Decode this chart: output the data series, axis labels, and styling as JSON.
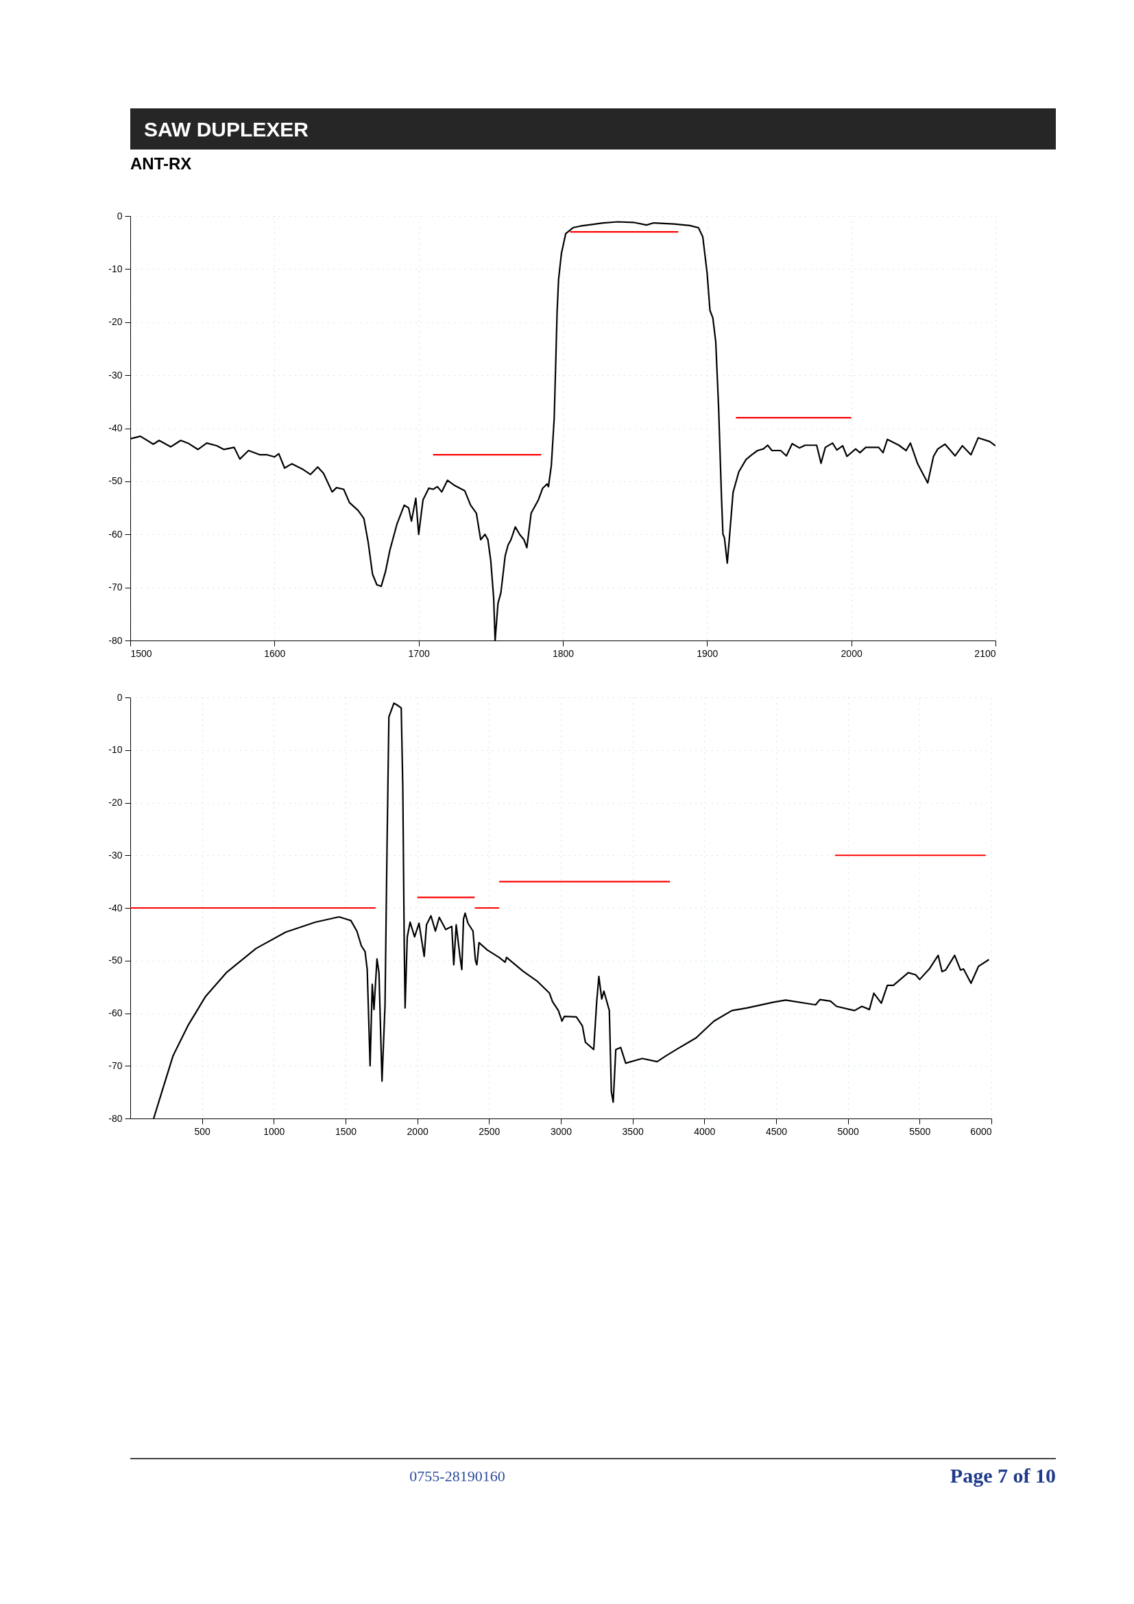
{
  "chart_data": [
    {
      "type": "line",
      "title": "SAW DUPLEXER",
      "subtitle": "ANT-RX",
      "xlim": [
        1500,
        2100
      ],
      "xticks": [
        1500,
        1600,
        1700,
        1800,
        1900,
        2000,
        2100
      ],
      "ylim": [
        -80,
        0
      ],
      "yticks": [
        -80,
        -70,
        -60,
        -50,
        -40,
        -30,
        -20,
        -10,
        0
      ],
      "grid": true,
      "line_style": "solid",
      "series": [
        {
          "color": "#000000",
          "x": [
            1500,
            1507,
            1516,
            1520,
            1528,
            1535,
            1540,
            1547,
            1553,
            1560,
            1565,
            1572,
            1576,
            1582,
            1590,
            1595,
            1600,
            1603,
            1607,
            1612,
            1620,
            1625,
            1630,
            1634,
            1640,
            1643,
            1648,
            1652,
            1658,
            1662,
            1665,
            1668,
            1671,
            1674,
            1677,
            1680,
            1685,
            1690,
            1693,
            1695,
            1698,
            1700,
            1703,
            1707,
            1710,
            1713,
            1716,
            1720,
            1725,
            1732,
            1736,
            1740,
            1743,
            1746,
            1748,
            1750,
            1752,
            1753,
            1755,
            1757,
            1760,
            1762,
            1764,
            1767,
            1770,
            1773,
            1775,
            1778,
            1783,
            1786,
            1789,
            1790,
            1792,
            1794,
            1795,
            1796,
            1797,
            1799,
            1802,
            1807,
            1812,
            1828,
            1838,
            1849,
            1858,
            1863,
            1877,
            1888,
            1894,
            1897,
            1900,
            1902,
            1904,
            1906,
            1908,
            1910,
            1911,
            1912,
            1914,
            1915.5,
            1918,
            1922,
            1927,
            1931,
            1935,
            1939,
            1942,
            1945,
            1951,
            1955,
            1959,
            1964,
            1968,
            1976,
            1979,
            1982,
            1987,
            1990,
            1994,
            1997,
            2003,
            2006,
            2010,
            2019,
            2022,
            2025,
            2033,
            2038,
            2041,
            2046,
            2053,
            2057,
            2060,
            2065,
            2072,
            2077,
            2083,
            2088,
            2096,
            2100
          ],
          "values": [
            -42,
            -41.5,
            -43,
            -42.3,
            -43.5,
            -42.3,
            -42.8,
            -44,
            -42.8,
            -43.3,
            -44,
            -43.6,
            -45.8,
            -44.2,
            -45,
            -45,
            -45.4,
            -44.8,
            -47.5,
            -46.7,
            -47.8,
            -48.7,
            -47.3,
            -48.5,
            -52,
            -51.2,
            -51.5,
            -54,
            -55.5,
            -57,
            -61.5,
            -67.5,
            -69.5,
            -69.8,
            -67,
            -63,
            -58,
            -54.5,
            -55,
            -57.5,
            -53.2,
            -60,
            -53.5,
            -51.3,
            -51.5,
            -51,
            -52,
            -49.8,
            -50.8,
            -51.8,
            -54.5,
            -56,
            -61,
            -60,
            -61,
            -65,
            -72,
            -80,
            -73,
            -71,
            -64,
            -62,
            -61,
            -58.6,
            -60,
            -61,
            -62.5,
            -56,
            -53.5,
            -51.3,
            -50.5,
            -51,
            -47,
            -38,
            -28,
            -18,
            -12,
            -7,
            -3.3,
            -2.2,
            -1.9,
            -1.3,
            -1.1,
            -1.2,
            -1.7,
            -1.3,
            -1.5,
            -1.8,
            -2.2,
            -3.9,
            -10.7,
            -17.8,
            -19.2,
            -23.7,
            -36.2,
            -53.2,
            -60,
            -60.6,
            -65.4,
            -60.6,
            -52.1,
            -48.2,
            -45.9,
            -45,
            -44.2,
            -43.9,
            -43.2,
            -44.2,
            -44.2,
            -45.2,
            -42.9,
            -43.7,
            -43.2,
            -43.2,
            -46.6,
            -43.6,
            -42.8,
            -44.1,
            -43.3,
            -45.3,
            -43.9,
            -44.6,
            -43.6,
            -43.6,
            -44.6,
            -42.1,
            -43.2,
            -44.2,
            -42.8,
            -46.7,
            -50.3,
            -45.3,
            -43.9,
            -43,
            -45.2,
            -43.3,
            -45,
            -41.8,
            -42.5,
            -43.3
          ]
        },
        {
          "color": "#ff0000",
          "x": [
            1710,
            1785,
            null,
            1805,
            1880,
            null,
            1920,
            2000
          ],
          "values": [
            -45,
            -45,
            null,
            -3,
            -3,
            null,
            -38,
            -38
          ]
        }
      ]
    },
    {
      "type": "line",
      "xlim": [
        0,
        6000
      ],
      "xticks": [
        500,
        1000,
        1500,
        2000,
        2500,
        3000,
        3500,
        4000,
        4500,
        5000,
        5500,
        6000
      ],
      "ylim": [
        -80,
        0
      ],
      "yticks": [
        -80,
        -70,
        -60,
        -50,
        -40,
        -30,
        -20,
        -10,
        0
      ],
      "grid": true,
      "line_style": "solid",
      "annotations": [
        "0755-28190160",
        "Page 7 of 10"
      ],
      "series": [
        {
          "color": "#000000",
          "x": [
            163,
            215,
            298,
            401,
            525,
            669,
            876,
            1083,
            1289,
            1455,
            1537,
            1579,
            1610,
            1636,
            1651,
            1671,
            1686,
            1698,
            1719,
            1733,
            1754,
            1775,
            1789,
            1802,
            1837,
            1857,
            1888,
            1899,
            1909,
            1915,
            1930,
            1950,
            1981,
            2012,
            2048,
            2064,
            2095,
            2126,
            2153,
            2198,
            2240,
            2254,
            2271,
            2298,
            2310,
            2322,
            2333,
            2353,
            2388,
            2405,
            2415,
            2430,
            2488,
            2570,
            2612,
            2622,
            2736,
            2839,
            2921,
            2942,
            2983,
            3008,
            3025,
            3108,
            3150,
            3171,
            3229,
            3250,
            3265,
            3285,
            3300,
            3338,
            3352,
            3365,
            3383,
            3417,
            3452,
            3567,
            3671,
            3733,
            3817,
            3942,
            4067,
            4192,
            4296,
            4483,
            4567,
            4775,
            4806,
            4879,
            4921,
            5046,
            5098,
            5150,
            5181,
            5233,
            5275,
            5317,
            5421,
            5473,
            5500,
            5567,
            5629,
            5656,
            5681,
            5744,
            5785,
            5806,
            5858,
            5910,
            5983
          ],
          "values": [
            -80,
            -75.4,
            -68.1,
            -62.4,
            -56.8,
            -52.3,
            -47.7,
            -44.6,
            -42.7,
            -41.7,
            -42.4,
            -44.4,
            -47.2,
            -48.3,
            -51.7,
            -70,
            -54.5,
            -59.3,
            -49.7,
            -52.3,
            -72.9,
            -58.5,
            -28.5,
            -3.7,
            -1.1,
            -1.4,
            -2,
            -17.2,
            -47.2,
            -59,
            -45.5,
            -42.7,
            -45.5,
            -42.9,
            -49.2,
            -43.2,
            -41.5,
            -44.4,
            -41.8,
            -44.1,
            -43.5,
            -50.8,
            -43.2,
            -49.4,
            -51.7,
            -42.1,
            -41,
            -42.9,
            -44.4,
            -50,
            -50.8,
            -46.6,
            -48,
            -49.4,
            -50.3,
            -49.4,
            -52,
            -54,
            -56.2,
            -57.8,
            -59.5,
            -61.5,
            -60.6,
            -60.7,
            -62.4,
            -65.5,
            -66.9,
            -57.8,
            -53,
            -57.3,
            -55.8,
            -59.5,
            -74.9,
            -76.9,
            -66.9,
            -66.5,
            -69.5,
            -68.6,
            -69.2,
            -68.1,
            -66.7,
            -64.7,
            -61.5,
            -59.5,
            -59,
            -57.9,
            -57.5,
            -58.4,
            -57.4,
            -57.7,
            -58.7,
            -59.5,
            -58.7,
            -59.3,
            -56.2,
            -58.1,
            -54.7,
            -54.7,
            -52.3,
            -52.7,
            -53.6,
            -51.6,
            -49,
            -52.1,
            -51.8,
            -49,
            -51.8,
            -51.6,
            -54.3,
            -51.1,
            -49.8
          ]
        },
        {
          "color": "#ff0000",
          "x": [
            0,
            1710,
            null,
            2000,
            2400,
            null,
            2400,
            2570,
            null,
            2570,
            3760,
            null,
            4910,
            5960
          ],
          "values": [
            -40,
            -40,
            null,
            -38,
            -38,
            null,
            -40,
            -40,
            null,
            -35,
            -35,
            null,
            -30,
            -30
          ]
        }
      ]
    }
  ]
}
